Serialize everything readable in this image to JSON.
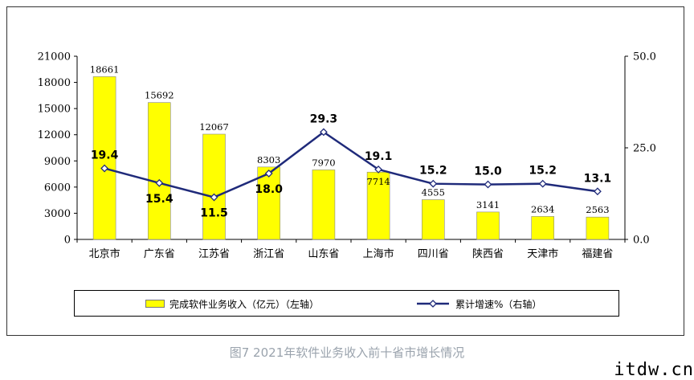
{
  "caption": "图7  2021年软件业务收入前十省市增长情况",
  "watermark": "itdw.cn",
  "chart_data": {
    "type": "bar",
    "categories": [
      "北京市",
      "广东省",
      "江苏省",
      "浙江省",
      "山东省",
      "上海市",
      "四川省",
      "陕西省",
      "天津市",
      "福建省"
    ],
    "series": [
      {
        "name": "完成软件业务收入（亿元）（左轴）",
        "type": "bar",
        "axis": "left",
        "color": "#ffff00",
        "values": [
          18661,
          15692,
          12067,
          8303,
          7970,
          7714,
          4555,
          3141,
          2634,
          2563
        ],
        "labels": [
          "18661",
          "15692",
          "12067",
          "8303",
          "7970",
          "7714",
          "4555",
          "3141",
          "2634",
          "2563"
        ]
      },
      {
        "name": "累计增速%（右轴）",
        "type": "line",
        "axis": "right",
        "color": "#1f2a7a",
        "values": [
          19.4,
          15.4,
          11.5,
          18.0,
          29.3,
          19.1,
          15.2,
          15.0,
          15.2,
          13.1
        ],
        "labels": [
          "19.4",
          "15.4",
          "11.5",
          "18.0",
          "29.3",
          "19.1",
          "15.2",
          "15.0",
          "15.2",
          "13.1"
        ]
      }
    ],
    "y_left": {
      "ylim": [
        0,
        21000
      ],
      "ticks": [
        "0",
        "3000",
        "6000",
        "9000",
        "12000",
        "15000",
        "18000",
        "21000"
      ]
    },
    "y_right": {
      "ylim": [
        0,
        50
      ],
      "ticks": [
        "0.0",
        "25.0",
        "50.0"
      ]
    },
    "grid": false,
    "legend": "bottom"
  }
}
